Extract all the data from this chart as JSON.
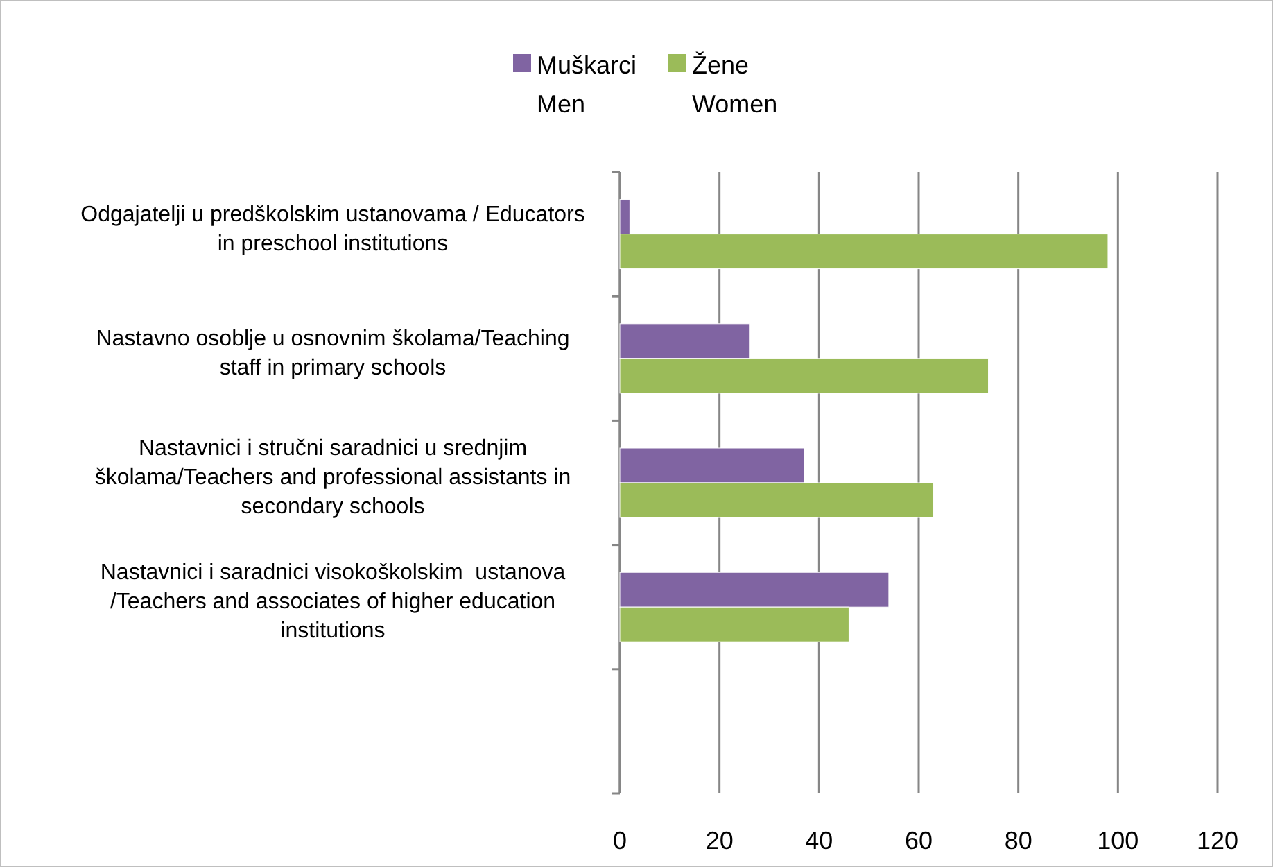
{
  "chart_data": {
    "type": "bar",
    "orientation": "horizontal",
    "categories": [
      "Odgajatelji u predškolskim ustanovama / Educators\nin preschool institutions",
      "Nastavno osoblje u osnovnim školama/Teaching\nstaff in primary schools",
      "Nastavnici i stručni saradnici u srednjim\nškolama/Teachers and professional assistants in\nsecondary schools",
      "Nastavnici i saradnici visokoškolskim  ustanova\n/Teachers and associates of higher education\ninstitutions",
      null
    ],
    "series": [
      {
        "name": "Muškarci\nMen",
        "color": "#8064a2",
        "values": [
          2,
          26,
          37,
          54,
          null
        ]
      },
      {
        "name": "Žene\nWomen",
        "color": "#9bbb59",
        "values": [
          98,
          74,
          63,
          46,
          null
        ]
      }
    ],
    "xlim": [
      0,
      120
    ],
    "xticks": [
      0,
      20,
      40,
      60,
      80,
      100,
      120
    ],
    "grid": "x",
    "legend": "top"
  }
}
